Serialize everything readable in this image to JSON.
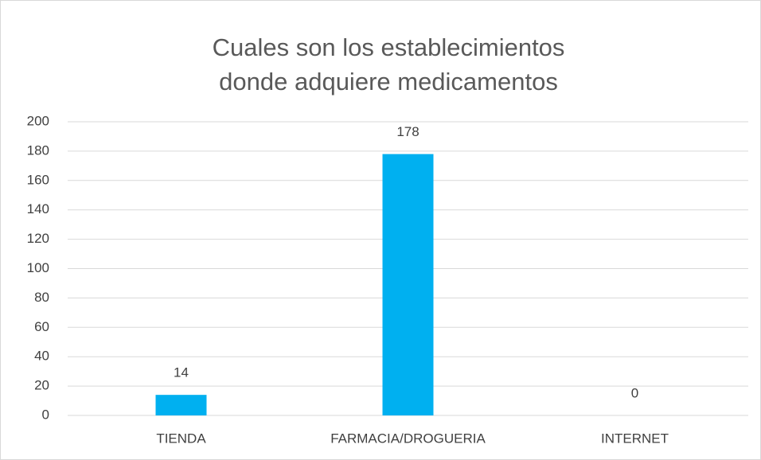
{
  "chart_data": {
    "type": "bar",
    "title": "Cuales son los establecimientos donde adquiere medicamentos",
    "categories": [
      "TIENDA",
      "FARMACIA/DROGUERIA",
      "INTERNET"
    ],
    "values": [
      14,
      178,
      0
    ],
    "color": "#00b0f0",
    "ylim": [
      0,
      200
    ],
    "yticks": [
      0,
      20,
      40,
      60,
      80,
      100,
      120,
      140,
      160,
      180,
      200
    ],
    "grid": true
  }
}
